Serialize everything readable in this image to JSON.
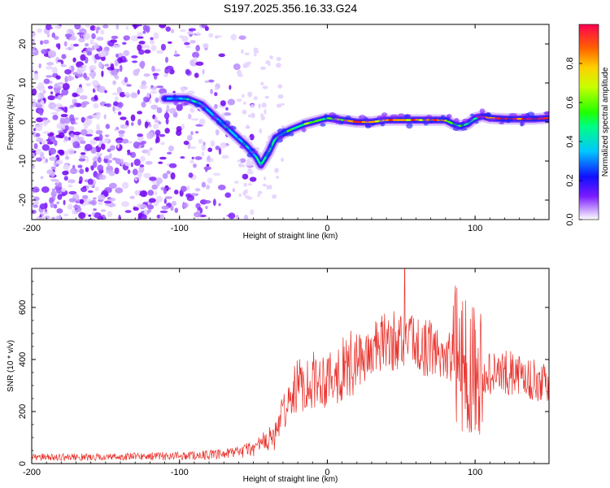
{
  "title": "S197.2025.356.16.33.G24",
  "chart_data": [
    {
      "type": "heatmap",
      "name": "spectrogram",
      "xlabel": "Height of straight line (km)",
      "ylabel": "Frequency (Hz)",
      "xlim": [
        -200,
        150
      ],
      "ylim": [
        -25,
        25
      ],
      "xticks": [
        -200,
        -100,
        0,
        100
      ],
      "yticks": [
        -20,
        -10,
        0,
        10,
        20
      ],
      "colorbar": {
        "label": "Normalized spectral amplitude",
        "range": [
          0,
          1
        ],
        "ticks": [
          "0.0",
          "0.2",
          "0.4",
          "0.6",
          "0.8"
        ]
      },
      "ridge": {
        "x": [
          -110,
          -95,
          -85,
          -75,
          -65,
          -55,
          -48,
          -45,
          -40,
          -35,
          -25,
          -15,
          -5,
          0,
          10,
          20,
          30,
          40,
          50,
          60,
          70,
          80,
          85,
          90,
          95,
          100,
          105,
          110,
          120,
          130,
          140,
          150
        ],
        "y": [
          6,
          6,
          4.5,
          1,
          -2.5,
          -6,
          -9,
          -11,
          -8,
          -4,
          -2,
          -0.5,
          0.5,
          1,
          0.5,
          0,
          0,
          0.5,
          0.5,
          0.5,
          0.5,
          0.5,
          -0.5,
          -1,
          -0.5,
          1,
          1.5,
          1,
          0.8,
          0.8,
          0.8,
          1
        ]
      }
    },
    {
      "type": "line",
      "name": "snr",
      "xlabel": "Height of straight line (km)",
      "ylabel": "SNR (10 * v/v)",
      "xlim": [
        -200,
        150
      ],
      "ylim": [
        0,
        750
      ],
      "xticks": [
        -200,
        -100,
        0,
        100
      ],
      "yticks": [
        0,
        200,
        400,
        600
      ],
      "color": "#e8302a",
      "envelope": {
        "x": [
          -200,
          -150,
          -100,
          -70,
          -60,
          -50,
          -45,
          -40,
          -35,
          -30,
          -20,
          -10,
          0,
          10,
          20,
          30,
          40,
          50,
          60,
          70,
          80,
          90,
          100,
          110,
          120,
          130,
          140,
          150
        ],
        "y": [
          25,
          25,
          30,
          35,
          45,
          60,
          75,
          90,
          110,
          200,
          300,
          320,
          330,
          360,
          390,
          430,
          470,
          470,
          460,
          440,
          420,
          400,
          380,
          340,
          350,
          340,
          320,
          300
        ]
      }
    }
  ]
}
